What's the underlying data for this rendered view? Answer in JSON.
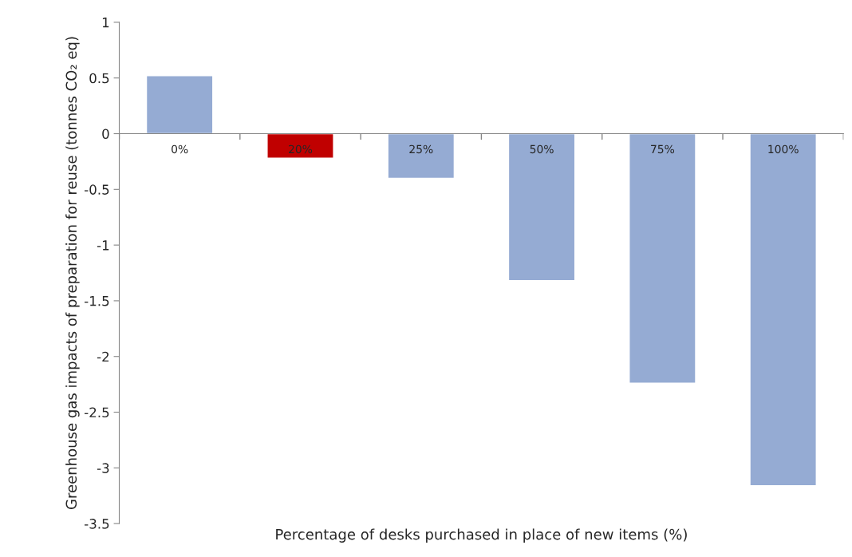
{
  "chart_data": {
    "type": "bar",
    "categories": [
      "0%",
      "20%",
      "25%",
      "50%",
      "75%",
      "100%"
    ],
    "values": [
      0.52,
      -0.22,
      -0.4,
      -1.32,
      -2.24,
      -3.16
    ],
    "colors": [
      "#95abd3",
      "#c00000",
      "#95abd3",
      "#95abd3",
      "#95abd3",
      "#95abd3"
    ],
    "xlabel": "Percentage of desks purchased in place of new items (%)",
    "ylabel": "Greenhouse gas impacts of preparation for reuse (tonnes CO₂ eq)",
    "ylim": [
      -3.5,
      1
    ],
    "yticks": [
      -3.5,
      -3,
      -2.5,
      -2,
      -1.5,
      -1,
      -0.5,
      0,
      0.5,
      1
    ],
    "grid": false,
    "legend": false
  }
}
